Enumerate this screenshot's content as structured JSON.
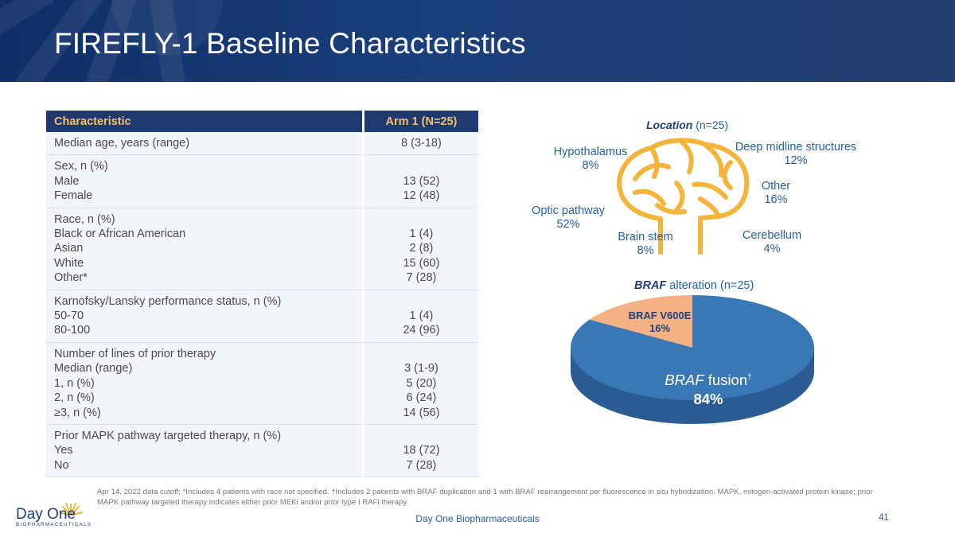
{
  "slide": {
    "title": "FIREFLY-1 Baseline Characteristics",
    "company_footer": "Day One Biopharmaceuticals",
    "page_number": "41",
    "footnote": "Apr 14, 2022 data cutoff; *Includes 4 patients with race not specified. †Includes 2 patients with BRAF duplication and 1 with BRAF rearrangement per fluorescence in situ hybridization. MAPK, mitogen-activated protein kinase; prior MAPK pathway targeted therapy indicates either prior MEKi and/or prior type I RAFi therapy.",
    "logo": {
      "name": "Day One",
      "sub": "BIOPHARMACEUTICALS"
    }
  },
  "table": {
    "headers": [
      "Characteristic",
      "Arm 1 (N=25)"
    ],
    "groups": [
      {
        "labels": [
          "Median age, years (range)"
        ],
        "values": [
          "8 (3-18)"
        ]
      },
      {
        "labels": [
          "Sex, n (%)",
          "Male",
          "Female"
        ],
        "values": [
          "",
          "13 (52)",
          "12 (48)"
        ]
      },
      {
        "labels": [
          "Race, n (%)",
          "Black or African American",
          "Asian",
          "White",
          "Other*"
        ],
        "values": [
          "",
          "1 (4)",
          "2 (8)",
          "15 (60)",
          "7 (28)"
        ]
      },
      {
        "labels": [
          "Karnofsky/Lansky performance status, n (%)",
          "50-70",
          "80-100"
        ],
        "values": [
          "",
          "1 (4)",
          "24 (96)"
        ]
      },
      {
        "labels": [
          "Number of lines of prior therapy",
          "Median (range)",
          "1, n (%)",
          "2, n (%)",
          "≥3, n (%)"
        ],
        "values": [
          "",
          "3 (1-9)",
          "5 (20)",
          "6 (24)",
          "14 (56)"
        ]
      },
      {
        "labels": [
          "Prior MAPK pathway targeted therapy, n (%)",
          "Yes",
          "No"
        ],
        "values": [
          "",
          "18 (72)",
          "7 (28)"
        ]
      }
    ]
  },
  "location": {
    "title_italic": "Location",
    "title_rest": " (n=25)",
    "items": [
      {
        "label": "Hypothalamus",
        "value": "8%"
      },
      {
        "label": "Deep midline structures",
        "value": "12%"
      },
      {
        "label": "Other",
        "value": "16%"
      },
      {
        "label": "Optic pathway",
        "value": "52%"
      },
      {
        "label": "Brain stem",
        "value": "8%"
      },
      {
        "label": "Cerebellum",
        "value": "4%"
      }
    ]
  },
  "braf": {
    "title_italic": "BRAF",
    "title_rest": " alteration (n=25)",
    "colors": {
      "fusion": "#3a77b5",
      "fusion_side": "#2a5c93",
      "v600e": "#f4b183",
      "v600e_side": "#d98f5c"
    },
    "chart_data": {
      "type": "pie",
      "title": "BRAF alteration (n=25)",
      "slices": [
        {
          "label": "BRAF fusion†",
          "value": 84
        },
        {
          "label": "BRAF V600E",
          "value": 16
        }
      ]
    },
    "labels": {
      "fusion_italic": "BRAF",
      "fusion_rest": " fusion",
      "fusion_mark": "†",
      "fusion_pct": "84%",
      "v600e": "BRAF V600E",
      "v600e_pct": "16%"
    }
  }
}
